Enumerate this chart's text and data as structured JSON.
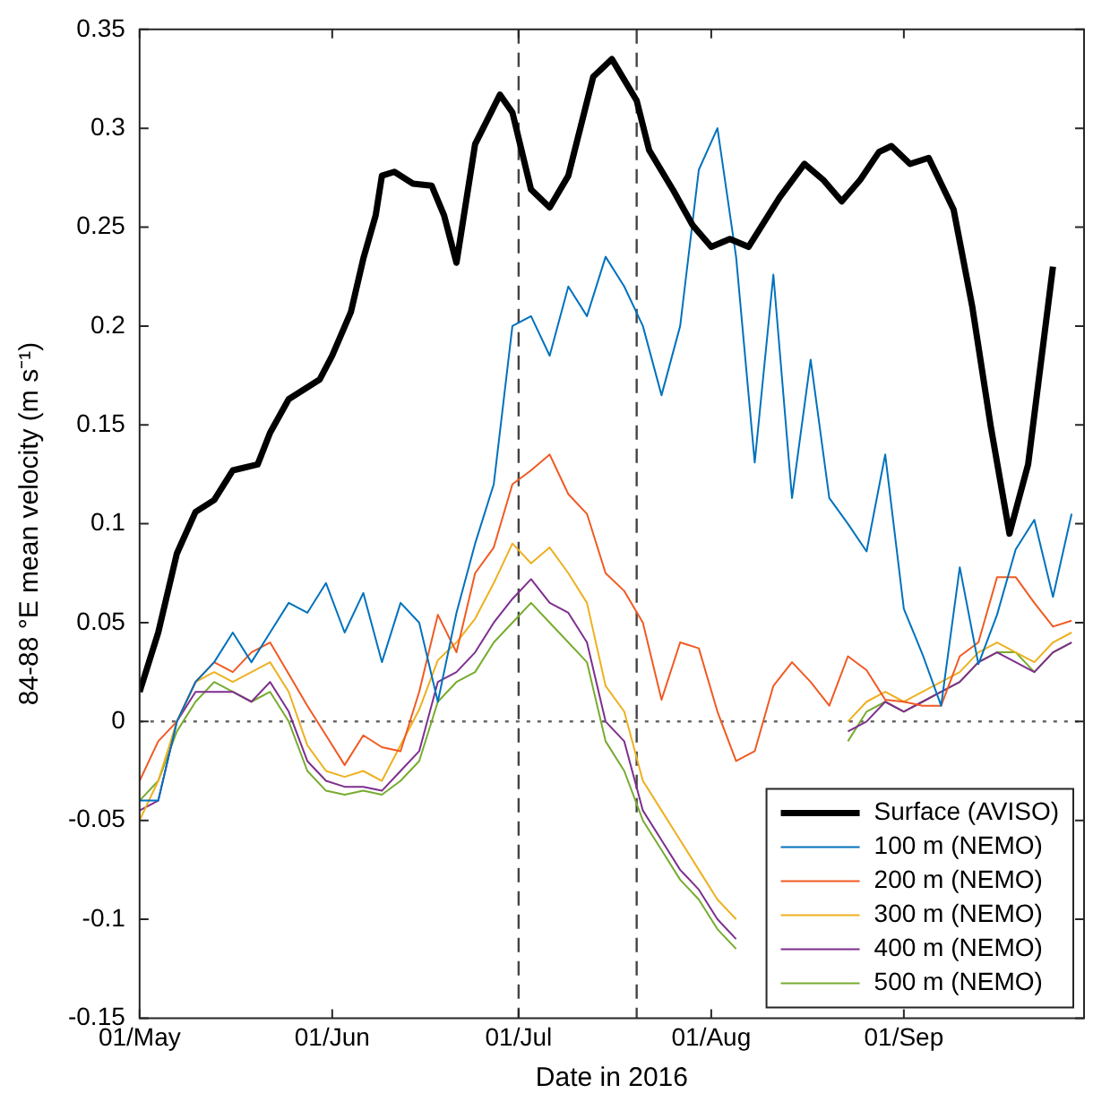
{
  "chart_data": {
    "type": "line",
    "xlabel": "Date in 2016",
    "ylabel": "84-88 °E mean velocity (m s⁻¹)",
    "xlim": [
      "2016-05-01",
      "2016-09-30"
    ],
    "xticks": [
      {
        "value": "2016-05-01",
        "label": "01/May"
      },
      {
        "value": "2016-06-01",
        "label": "01/Jun"
      },
      {
        "value": "2016-07-01",
        "label": "01/Jul"
      },
      {
        "value": "2016-08-01",
        "label": "01/Aug"
      },
      {
        "value": "2016-09-01",
        "label": "01/Sep"
      }
    ],
    "ylim": [
      -0.15,
      0.35
    ],
    "yticks": [
      -0.15,
      -0.1,
      -0.05,
      0,
      0.05,
      0.1,
      0.15,
      0.2,
      0.25,
      0.3,
      0.35
    ],
    "grid": false,
    "legend": "bottom right",
    "marker": "none",
    "line_style": "solid",
    "x": [
      "2016-05-01",
      "2016-05-04",
      "2016-05-07",
      "2016-05-10",
      "2016-05-13",
      "2016-05-16",
      "2016-05-19",
      "2016-05-22",
      "2016-05-25",
      "2016-05-28",
      "2016-05-31",
      "2016-06-03",
      "2016-06-06",
      "2016-06-09",
      "2016-06-12",
      "2016-06-15",
      "2016-06-18",
      "2016-06-21",
      "2016-06-24",
      "2016-06-27",
      "2016-06-30",
      "2016-07-03",
      "2016-07-06",
      "2016-07-09",
      "2016-07-12",
      "2016-07-15",
      "2016-07-18",
      "2016-07-21",
      "2016-07-24",
      "2016-07-27",
      "2016-07-30",
      "2016-08-02",
      "2016-08-05",
      "2016-08-08",
      "2016-08-11",
      "2016-08-14",
      "2016-08-17",
      "2016-08-20",
      "2016-08-23",
      "2016-08-26",
      "2016-08-29",
      "2016-09-01",
      "2016-09-04",
      "2016-09-07",
      "2016-09-10",
      "2016-09-13",
      "2016-09-16",
      "2016-09-19",
      "2016-09-22",
      "2016-09-25",
      "2016-09-28"
    ],
    "series": [
      {
        "name": "Surface (AVISO)",
        "color": "#000000",
        "x": [
          "2016-05-01",
          "2016-05-04",
          "2016-05-07",
          "2016-05-08",
          "2016-05-10",
          "2016-05-13",
          "2016-05-16",
          "2016-05-20",
          "2016-05-22",
          "2016-05-25",
          "2016-05-30",
          "2016-06-01",
          "2016-06-04",
          "2016-06-06",
          "2016-06-08",
          "2016-06-09",
          "2016-06-11",
          "2016-06-14",
          "2016-06-17",
          "2016-06-19",
          "2016-06-21",
          "2016-06-24",
          "2016-06-28",
          "2016-06-30",
          "2016-07-03",
          "2016-07-06",
          "2016-07-09",
          "2016-07-13",
          "2016-07-16",
          "2016-07-20",
          "2016-07-22",
          "2016-07-26",
          "2016-07-29",
          "2016-08-01",
          "2016-08-04",
          "2016-08-07",
          "2016-08-12",
          "2016-08-16",
          "2016-08-19",
          "2016-08-22",
          "2016-08-25",
          "2016-08-28",
          "2016-08-30",
          "2016-09-02",
          "2016-09-05",
          "2016-09-09",
          "2016-09-12",
          "2016-09-15",
          "2016-09-18",
          "2016-09-21",
          "2016-09-25"
        ],
        "values": [
          0.015,
          0.045,
          0.085,
          0.092,
          0.106,
          0.112,
          0.127,
          0.13,
          0.146,
          0.163,
          0.173,
          0.185,
          0.207,
          0.234,
          0.256,
          0.276,
          0.278,
          0.272,
          0.271,
          0.256,
          0.232,
          0.292,
          0.317,
          0.308,
          0.269,
          0.26,
          0.276,
          0.326,
          0.335,
          0.314,
          0.289,
          0.268,
          0.251,
          0.24,
          0.244,
          0.24,
          0.265,
          0.282,
          0.274,
          0.263,
          0.274,
          0.288,
          0.291,
          0.282,
          0.285,
          0.259,
          0.21,
          0.149,
          0.095,
          0.13,
          0.23
        ]
      },
      {
        "name": "100 m (NEMO)",
        "color": "#0072bd",
        "values": [
          -0.04,
          -0.04,
          0.0,
          0.02,
          0.03,
          0.045,
          0.03,
          0.045,
          0.06,
          0.055,
          0.07,
          0.045,
          0.065,
          0.03,
          0.06,
          0.05,
          0.01,
          0.055,
          0.09,
          0.12,
          0.2,
          0.205,
          0.185,
          0.22,
          0.205,
          0.235,
          0.22,
          0.2,
          0.165,
          0.2,
          0.279,
          0.3,
          0.235,
          0.131,
          0.226,
          0.113,
          0.183,
          0.113,
          0.1,
          0.086,
          0.135,
          0.057,
          0.034,
          0.008,
          0.078,
          0.029,
          0.054,
          0.087,
          0.102,
          0.063,
          0.105
        ]
      },
      {
        "name": "200 m (NEMO)",
        "color": "#f05a23",
        "values": [
          -0.03,
          -0.01,
          0.0,
          0.02,
          0.03,
          0.025,
          0.035,
          0.04,
          0.024,
          0.008,
          -0.007,
          -0.022,
          -0.007,
          -0.013,
          -0.015,
          0.015,
          0.054,
          0.035,
          0.075,
          0.088,
          0.12,
          0.127,
          0.135,
          0.115,
          0.105,
          0.075,
          0.066,
          0.05,
          0.011,
          0.04,
          0.037,
          0.005,
          -0.02,
          -0.015,
          0.018,
          0.03,
          0.02,
          0.008,
          0.033,
          0.026,
          0.011,
          0.01,
          0.008,
          0.008,
          0.033,
          0.04,
          0.073,
          0.073,
          0.06,
          0.048,
          0.051
        ]
      },
      {
        "name": "300 m (NEMO)",
        "color": "#edb120",
        "values": [
          -0.05,
          -0.03,
          0.0,
          0.02,
          0.025,
          0.02,
          0.025,
          0.03,
          0.015,
          -0.012,
          -0.025,
          -0.028,
          -0.025,
          -0.03,
          -0.012,
          0.006,
          0.031,
          0.04,
          0.052,
          0.07,
          0.09,
          0.08,
          0.088,
          0.075,
          0.06,
          0.018,
          0.005,
          -0.03,
          -0.045,
          -0.06,
          -0.075,
          -0.09,
          -0.1,
          null,
          null,
          null,
          null,
          null,
          0.0,
          0.01,
          0.015,
          0.01,
          0.015,
          0.02,
          0.025,
          0.035,
          0.04,
          0.035,
          0.03,
          0.04,
          0.045
        ]
      },
      {
        "name": "400 m (NEMO)",
        "color": "#7e2f8e",
        "values": [
          -0.045,
          -0.04,
          0.0,
          0.015,
          0.015,
          0.015,
          0.01,
          0.02,
          0.005,
          -0.02,
          -0.03,
          -0.033,
          -0.033,
          -0.035,
          -0.025,
          -0.015,
          0.02,
          0.025,
          0.035,
          0.05,
          0.062,
          0.072,
          0.06,
          0.055,
          0.04,
          0.0,
          -0.01,
          -0.045,
          -0.06,
          -0.075,
          -0.085,
          -0.1,
          -0.11,
          null,
          null,
          null,
          null,
          null,
          -0.005,
          0.0,
          0.01,
          0.005,
          0.01,
          0.015,
          0.02,
          0.03,
          0.035,
          0.03,
          0.025,
          0.035,
          0.04
        ]
      },
      {
        "name": "500 m (NEMO)",
        "color": "#77ac30",
        "values": [
          -0.04,
          -0.03,
          -0.005,
          0.01,
          0.02,
          0.015,
          0.01,
          0.015,
          0.0,
          -0.025,
          -0.035,
          -0.037,
          -0.035,
          -0.037,
          -0.03,
          -0.02,
          0.01,
          0.02,
          0.025,
          0.04,
          0.05,
          0.06,
          0.05,
          0.04,
          0.03,
          -0.01,
          -0.025,
          -0.05,
          -0.065,
          -0.08,
          -0.09,
          -0.105,
          -0.115,
          null,
          null,
          null,
          null,
          null,
          -0.01,
          0.005,
          0.01,
          0.005,
          0.01,
          0.015,
          0.02,
          0.03,
          0.035,
          0.035,
          0.025,
          0.035,
          0.04
        ]
      }
    ],
    "ref_lines": [
      {
        "axis": "y",
        "value": 0,
        "color": "#666666",
        "line_style": "dotted"
      },
      {
        "axis": "x",
        "value": "2016-07-01",
        "color": "#444444",
        "line_style": "dashed"
      },
      {
        "axis": "x",
        "value": "2016-07-20",
        "color": "#444444",
        "line_style": "dashed"
      }
    ]
  }
}
